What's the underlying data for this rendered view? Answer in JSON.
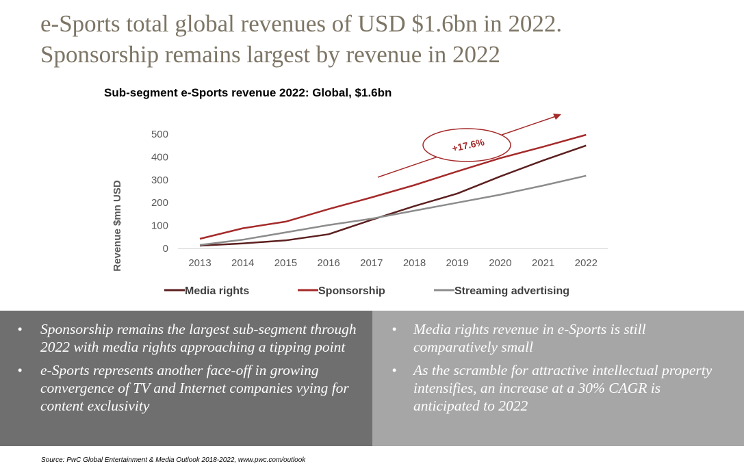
{
  "header": {
    "title_line1": "e-Sports total global revenues of USD $1.6bn in 2022.",
    "title_line2": "Sponsorship remains largest by revenue in 2022"
  },
  "chart_data": {
    "type": "line",
    "title": "Sub-segment e-Sports revenue 2022: Global, $1.6bn",
    "xlabel": "",
    "ylabel": "Revenue $mn USD",
    "x": [
      "2013",
      "2014",
      "2015",
      "2016",
      "2017",
      "2018",
      "2019",
      "2020",
      "2021",
      "2022"
    ],
    "ylim": [
      0,
      500
    ],
    "yticks": [
      0,
      100,
      200,
      300,
      400,
      500
    ],
    "grid": false,
    "legend_position": "bottom",
    "annotation": "+17.6%",
    "series": [
      {
        "name": "Media rights",
        "color": "#5c1f1f",
        "values": [
          12,
          22,
          35,
          62,
          125,
          185,
          240,
          315,
          385,
          450
        ]
      },
      {
        "name": "Sponsorship",
        "color": "#a52a2a",
        "values": [
          42,
          88,
          117,
          172,
          223,
          277,
          337,
          395,
          445,
          497
        ]
      },
      {
        "name": "Streaming advertising",
        "color": "#8c8c8c",
        "values": [
          15,
          38,
          70,
          102,
          130,
          165,
          200,
          235,
          275,
          318
        ]
      }
    ]
  },
  "bullets_left": [
    "Sponsorship remains the largest sub-segment through 2022 with media rights approaching a tipping point",
    "e-Sports represents another face-off in growing convergence of TV and Internet companies vying for content exclusivity"
  ],
  "bullets_right": [
    "Media rights revenue in e-Sports is still comparatively small",
    "As the scramble for attractive intellectual property intensifies, an increase at a 30% CAGR is anticipated to 2022"
  ],
  "footer": {
    "source": "Source:  PwC Global Entertainment & Media Outlook 2018-2022, www.pwc.com/outlook"
  }
}
